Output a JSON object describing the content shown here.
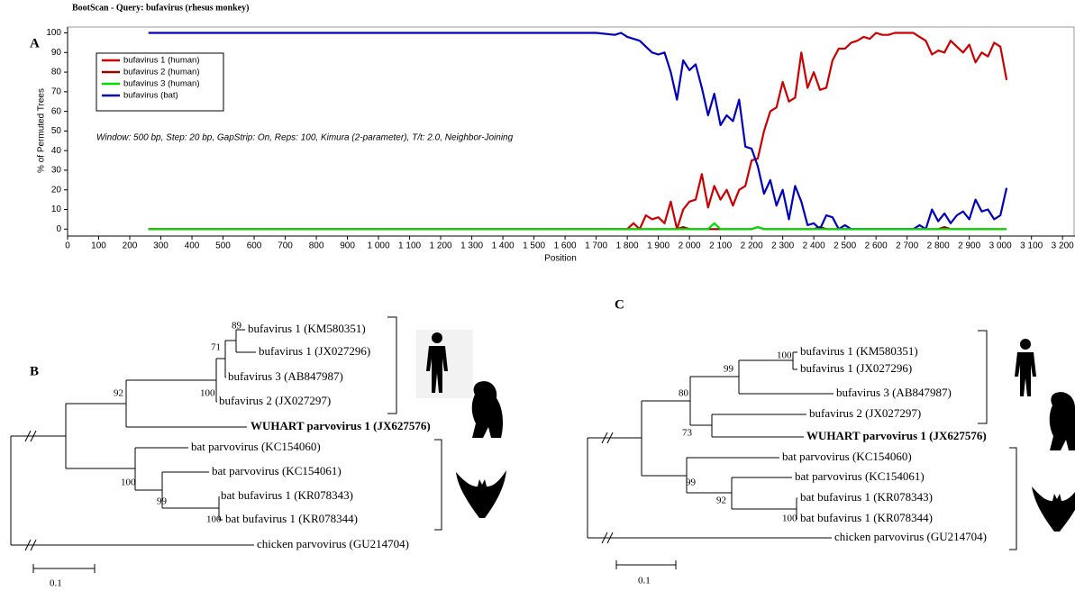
{
  "chart_data": {
    "type": "line",
    "title": "BootScan - Query: bufavirus (rhesus monkey)",
    "panel_label": "A",
    "xlabel": "Position",
    "ylabel": "% of Permuted Trees",
    "annotation": "Window: 500 bp, Step: 20 bp, GapStrip: On, Reps: 100, Kimura (2-parameter), T/t: 2.0, Neighbor-Joining",
    "legend": "upper left",
    "grid": false,
    "xlim": [
      0,
      3240
    ],
    "ylim": [
      -4,
      103
    ],
    "yticks": [
      0,
      10,
      20,
      30,
      40,
      50,
      60,
      70,
      80,
      90,
      100
    ],
    "xticks": [
      0,
      100,
      200,
      300,
      400,
      500,
      600,
      700,
      800,
      900,
      {
        "value": 1000,
        "label": "1 000"
      },
      {
        "value": 1100,
        "label": "1 100"
      },
      {
        "value": 1200,
        "label": "1 200"
      },
      {
        "value": 1300,
        "label": "1 300"
      },
      {
        "value": 1400,
        "label": "1 400"
      },
      {
        "value": 1500,
        "label": "1 500"
      },
      {
        "value": 1600,
        "label": "1 600"
      },
      {
        "value": 1700,
        "label": "1 700"
      },
      {
        "value": 1800,
        "label": "1 800"
      },
      {
        "value": 1900,
        "label": "1 900"
      },
      {
        "value": 2000,
        "label": "2 000"
      },
      {
        "value": 2100,
        "label": "2 100"
      },
      {
        "value": 2200,
        "label": "2 200"
      },
      {
        "value": 2300,
        "label": "2 300"
      },
      {
        "value": 2400,
        "label": "2 400"
      },
      {
        "value": 2500,
        "label": "2 500"
      },
      {
        "value": 2600,
        "label": "2 600"
      },
      {
        "value": 2700,
        "label": "2 700"
      },
      {
        "value": 2800,
        "label": "2 800"
      },
      {
        "value": 2900,
        "label": "2 900"
      },
      {
        "value": 3000,
        "label": "3 000"
      },
      {
        "value": 3100,
        "label": "3 100"
      },
      {
        "value": 3200,
        "label": "3 200"
      }
    ],
    "x": [
      260,
      1700,
      1760,
      1780,
      1800,
      1820,
      1840,
      1860,
      1880,
      1900,
      1920,
      1940,
      1960,
      1980,
      2000,
      2020,
      2040,
      2060,
      2080,
      2100,
      2120,
      2140,
      2160,
      2180,
      2200,
      2220,
      2240,
      2260,
      2280,
      2300,
      2320,
      2340,
      2360,
      2380,
      2400,
      2420,
      2440,
      2460,
      2480,
      2500,
      2520,
      2540,
      2560,
      2580,
      2600,
      2620,
      2640,
      2660,
      2680,
      2700,
      2720,
      2740,
      2760,
      2780,
      2800,
      2820,
      2840,
      2860,
      2880,
      2900,
      2920,
      2940,
      2960,
      2980,
      3000,
      3020
    ],
    "series": [
      {
        "name": "bufavirus 1 (human)",
        "color": "#cc0000",
        "values": [
          0,
          0,
          0,
          0,
          0,
          3,
          0,
          7,
          5,
          6,
          3,
          14,
          0,
          10,
          14,
          15,
          28,
          11,
          22,
          15,
          20,
          12,
          20,
          22,
          35,
          36,
          50,
          60,
          62,
          75,
          65,
          67,
          90,
          72,
          80,
          71,
          72,
          86,
          92,
          92,
          95,
          96,
          98,
          97,
          100,
          99,
          99,
          100,
          100,
          100,
          100,
          98,
          96,
          89,
          91,
          90,
          96,
          93,
          90,
          94,
          85,
          90,
          88,
          95,
          93,
          76
        ]
      },
      {
        "name": "bufavirus 2 (human)",
        "color": "#990000",
        "values": [
          0,
          0,
          0,
          0,
          0,
          0,
          0,
          0,
          0,
          0,
          0,
          0,
          0,
          1,
          0,
          0,
          0,
          0,
          0,
          0,
          0,
          0,
          0,
          0,
          0,
          1,
          0,
          0,
          0,
          0,
          0,
          0,
          0,
          0,
          0,
          1,
          0,
          0,
          0,
          0,
          0,
          0,
          0,
          0,
          0,
          0,
          0,
          0,
          0,
          0,
          0,
          0,
          0,
          0,
          0,
          1,
          0,
          0,
          0,
          0,
          0,
          0,
          0,
          0,
          0,
          0
        ]
      },
      {
        "name": "bufavirus 3 (human)",
        "color": "#00dd00",
        "values": [
          0,
          0,
          0,
          0,
          0,
          0,
          0,
          0,
          0,
          0,
          0,
          0,
          0,
          0,
          0,
          0,
          0,
          0,
          3,
          0,
          0,
          0,
          0,
          0,
          0,
          1,
          0,
          0,
          0,
          0,
          0,
          0,
          0,
          0,
          0,
          0,
          0,
          0,
          0,
          0,
          0,
          0,
          0,
          0,
          0,
          0,
          0,
          0,
          0,
          0,
          0,
          0,
          0,
          0,
          0,
          0,
          0,
          0,
          0,
          0,
          0,
          0,
          0,
          0,
          0,
          0
        ]
      },
      {
        "name": "bufavirus (bat)",
        "color": "#0000bb",
        "values": [
          100,
          100,
          99,
          100,
          98,
          97,
          96,
          93,
          90,
          89,
          90,
          80,
          66,
          86,
          81,
          84,
          72,
          58,
          69,
          53,
          58,
          55,
          66,
          42,
          41,
          32,
          18,
          25,
          12,
          20,
          5,
          22,
          14,
          2,
          3,
          0,
          7,
          6,
          0,
          2,
          0,
          0,
          0,
          0,
          0,
          0,
          0,
          0,
          0,
          0,
          0,
          2,
          0,
          10,
          4,
          8,
          3,
          7,
          9,
          5,
          15,
          9,
          10,
          5,
          7,
          21
        ]
      }
    ]
  },
  "tree_b": {
    "label": "B",
    "leaves": [
      "bufavirus 1 (KM580351)",
      "bufavirus 1 (JX027296)",
      "bufavirus 3 (AB847987)",
      "bufavirus 2 (JX027297)",
      "WUHART parvovirus 1 (JX627576)",
      "bat parvovirus (KC154060)",
      "bat parvovirus (KC154061)",
      "bat bufavirus 1 (KR078343)",
      "bat bufavirus 1 (KR078344)",
      "chicken parvovirus (GU214704)"
    ],
    "bootstrap": [
      89,
      71,
      100,
      92,
      100,
      99,
      100
    ],
    "scale": "0.1"
  },
  "tree_c": {
    "label": "C",
    "leaves": [
      "bufavirus 1 (KM580351)",
      "bufavirus 1 (JX027296)",
      "bufavirus 3 (AB847987)",
      "bufavirus 2 (JX027297)",
      "WUHART parvovirus 1 (JX627576)",
      "bat parvovirus (KC154060)",
      "bat parvovirus (KC154061)",
      "bat bufavirus 1 (KR078343)",
      "bat bufavirus 1 (KR078344)",
      "chicken parvovirus (GU214704)"
    ],
    "bootstrap": [
      100,
      99,
      80,
      73,
      99,
      92,
      100
    ],
    "scale": "0.1"
  }
}
